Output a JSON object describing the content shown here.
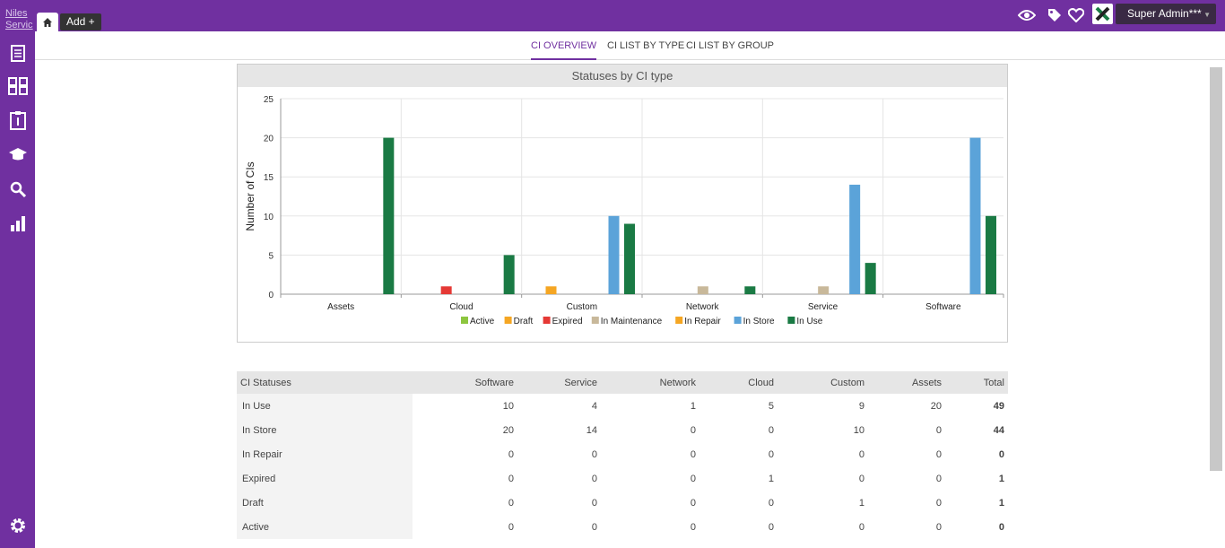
{
  "header": {
    "brand_line1": "Niles",
    "brand_line2": "Servic",
    "add_label": "Add +",
    "user_name": "Super Admin***",
    "icons": [
      "eye-icon",
      "tag-icon",
      "heart-icon"
    ]
  },
  "sidebar": {
    "items": [
      "document-icon",
      "dashboard-icon",
      "clipboard-icon",
      "graduation-cap-icon",
      "search-icon",
      "bar-chart-icon"
    ],
    "footer": "gear-icon"
  },
  "subnav": {
    "tabs": [
      {
        "label": "CI OVERVIEW",
        "active": true
      },
      {
        "label": "CI LIST BY TYPE",
        "active": false
      },
      {
        "label": "CI LIST BY GROUP",
        "active": false
      }
    ]
  },
  "chart": {
    "title": "Statuses by CI type"
  },
  "chart_data": {
    "type": "bar",
    "title": "Statuses by CI type",
    "ylabel": "Number of CIs",
    "xlabel": "",
    "ylim": [
      0,
      25
    ],
    "yticks": [
      0,
      5,
      10,
      15,
      20,
      25
    ],
    "grid": true,
    "legend_position": "bottom",
    "categories": [
      "Assets",
      "Cloud",
      "Custom",
      "Network",
      "Service",
      "Software"
    ],
    "series": [
      {
        "name": "Active",
        "color": "#8dc63f",
        "values": [
          0,
          0,
          0,
          0,
          0,
          0
        ]
      },
      {
        "name": "Draft",
        "color": "#f5a623",
        "values": [
          0,
          0,
          1,
          0,
          0,
          0
        ]
      },
      {
        "name": "Expired",
        "color": "#e53935",
        "values": [
          0,
          1,
          0,
          0,
          0,
          0
        ]
      },
      {
        "name": "In Maintenance",
        "color": "#c8b89a",
        "values": [
          0,
          0,
          0,
          1,
          1,
          0
        ]
      },
      {
        "name": "In Repair",
        "color": "#f5a623",
        "values": [
          0,
          0,
          0,
          0,
          0,
          0
        ]
      },
      {
        "name": "In Store",
        "color": "#5ba3d9",
        "values": [
          0,
          0,
          10,
          0,
          14,
          20
        ]
      },
      {
        "name": "In Use",
        "color": "#1a7a44",
        "values": [
          20,
          5,
          9,
          1,
          4,
          10
        ]
      }
    ]
  },
  "table": {
    "headers": [
      "CI Statuses",
      "Software",
      "Service",
      "Network",
      "Cloud",
      "Custom",
      "Assets",
      "Total"
    ],
    "rows": [
      [
        "In Use",
        "10",
        "4",
        "1",
        "5",
        "9",
        "20",
        "49"
      ],
      [
        "In Store",
        "20",
        "14",
        "0",
        "0",
        "10",
        "0",
        "44"
      ],
      [
        "In Repair",
        "0",
        "0",
        "0",
        "0",
        "0",
        "0",
        "0"
      ],
      [
        "Expired",
        "0",
        "0",
        "0",
        "1",
        "0",
        "0",
        "1"
      ],
      [
        "Draft",
        "0",
        "0",
        "0",
        "0",
        "1",
        "0",
        "1"
      ],
      [
        "Active",
        "0",
        "0",
        "0",
        "0",
        "0",
        "0",
        "0"
      ]
    ]
  }
}
